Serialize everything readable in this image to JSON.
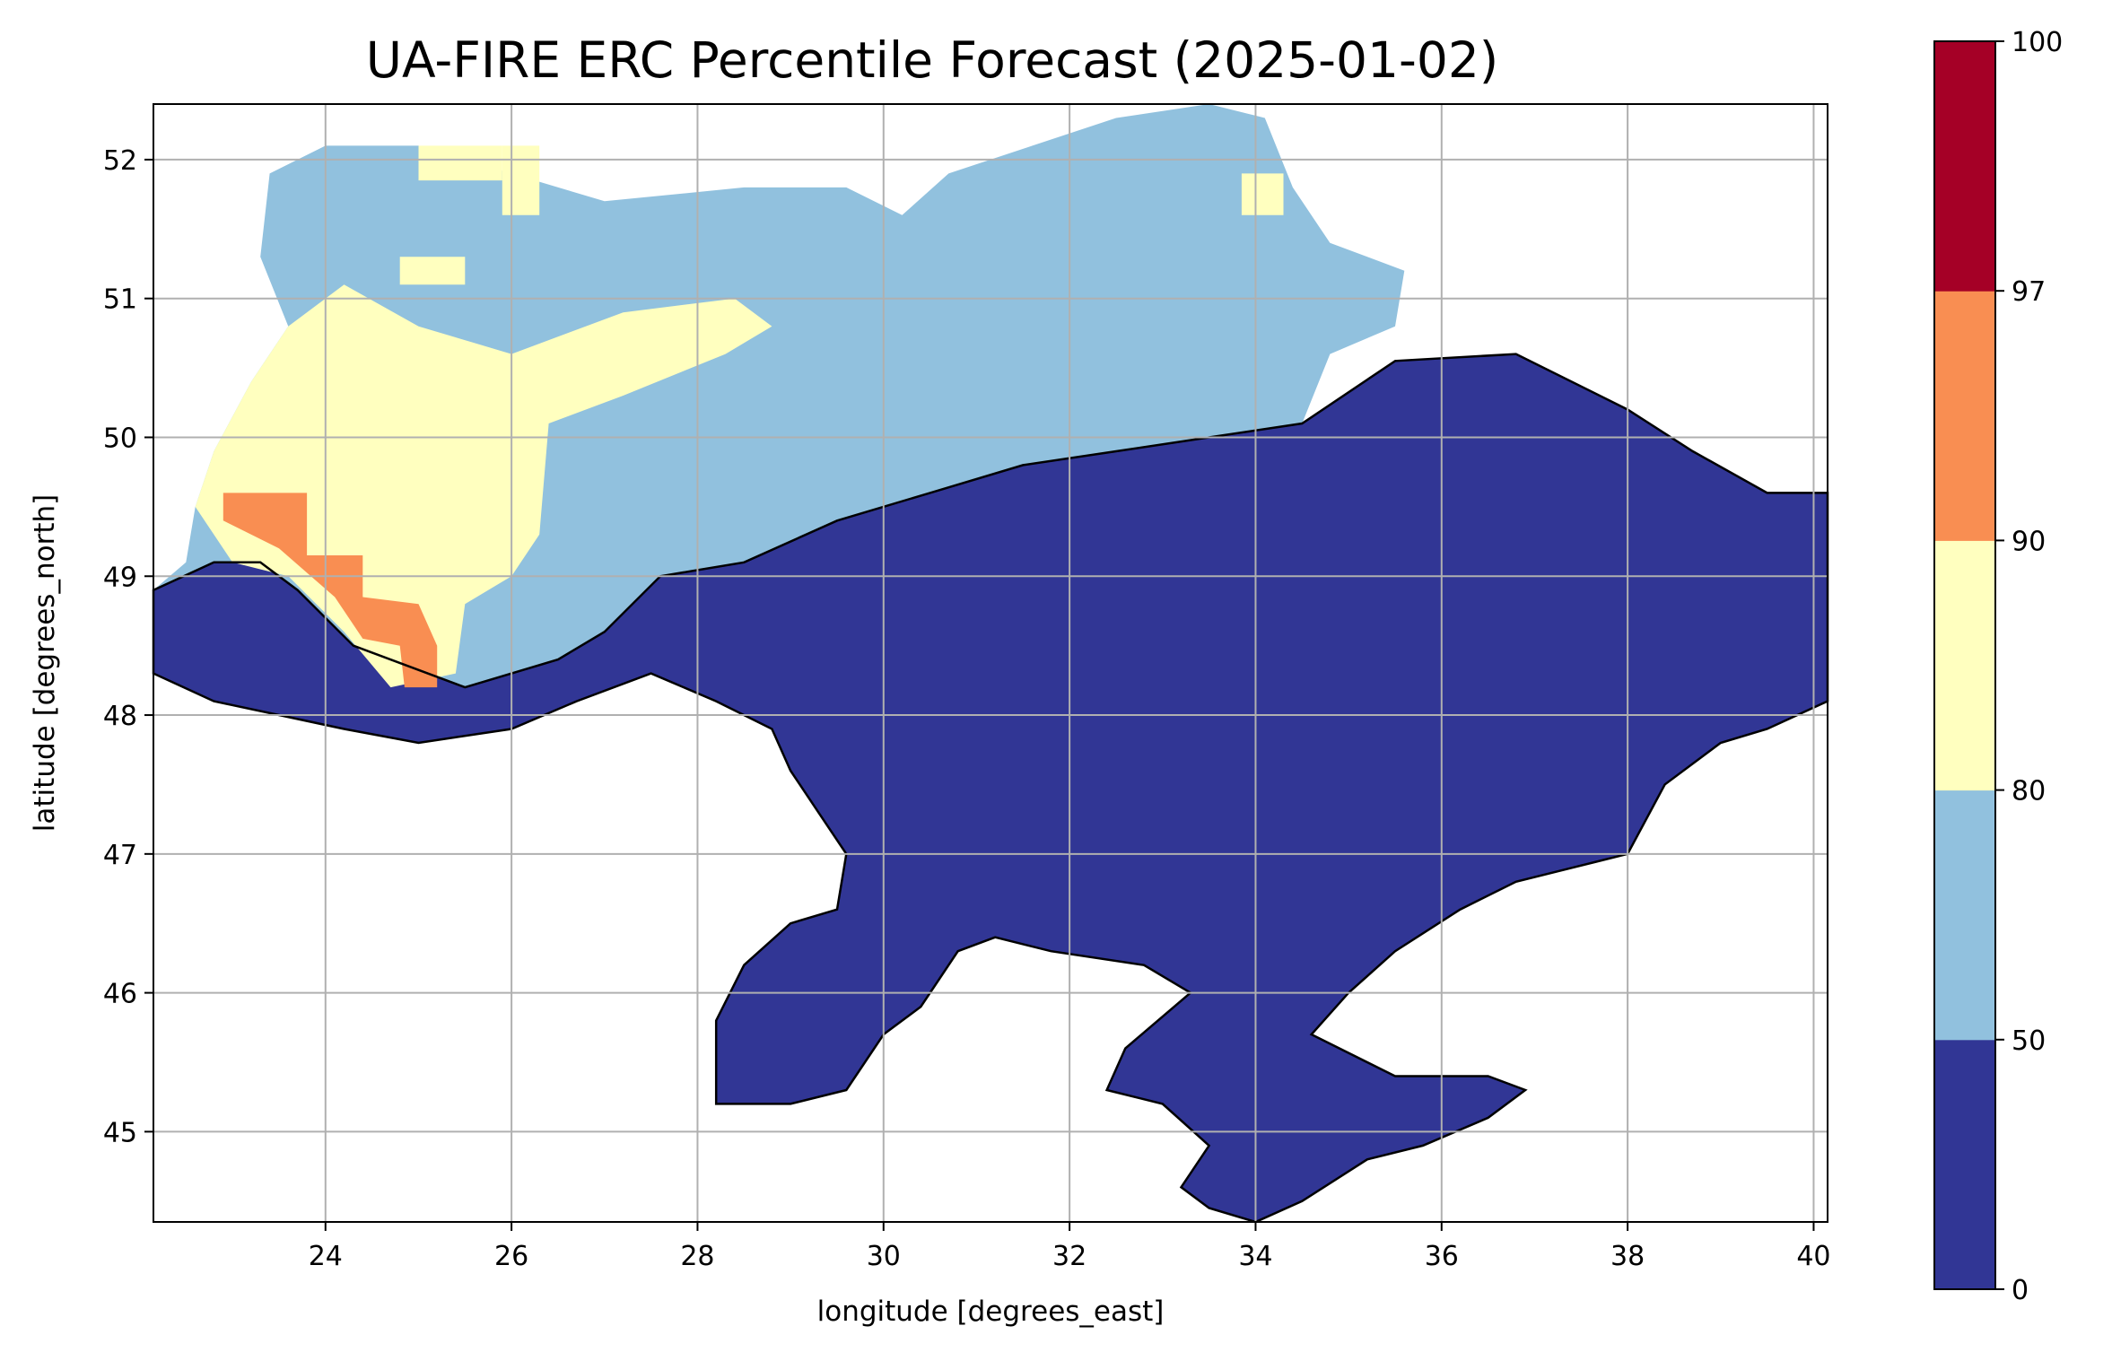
{
  "chart_data": {
    "type": "heatmap",
    "title": "UA-FIRE ERC Percentile Forecast (2025-01-02)",
    "xlabel": "longitude [degrees_east]",
    "ylabel": "latitude [degrees_north]",
    "xlim": [
      22.15,
      40.15
    ],
    "ylim": [
      44.35,
      52.4
    ],
    "xticks": [
      "24",
      "26",
      "28",
      "30",
      "32",
      "34",
      "36",
      "38",
      "40"
    ],
    "yticks": [
      "45",
      "46",
      "47",
      "48",
      "49",
      "50",
      "51",
      "52"
    ],
    "grid": true,
    "colorbar": {
      "ticks": [
        "0",
        "50",
        "80",
        "90",
        "97",
        "100"
      ],
      "bins": [
        {
          "range": [
            0,
            50
          ],
          "color": "#313695"
        },
        {
          "range": [
            50,
            80
          ],
          "color": "#91c1de"
        },
        {
          "range": [
            80,
            90
          ],
          "color": "#ffffbf"
        },
        {
          "range": [
            90,
            97
          ],
          "color": "#f98e52"
        },
        {
          "range": [
            97,
            100
          ],
          "color": "#a50026"
        }
      ]
    },
    "regions": [
      {
        "bin": 0,
        "points": [
          [
            22.15,
            48.9
          ],
          [
            22.8,
            49.1
          ],
          [
            23.3,
            49.1
          ],
          [
            23.7,
            48.9
          ],
          [
            24.3,
            48.5
          ],
          [
            25.5,
            48.2
          ],
          [
            26.5,
            48.4
          ],
          [
            27.0,
            48.6
          ],
          [
            27.6,
            49.0
          ],
          [
            28.5,
            49.1
          ],
          [
            29.5,
            49.4
          ],
          [
            30.5,
            49.6
          ],
          [
            31.5,
            49.8
          ],
          [
            32.5,
            49.9
          ],
          [
            33.5,
            50.0
          ],
          [
            34.5,
            50.1
          ],
          [
            35.5,
            50.55
          ],
          [
            36.8,
            50.6
          ],
          [
            38.0,
            50.2
          ],
          [
            38.7,
            49.9
          ],
          [
            39.5,
            49.6
          ],
          [
            40.15,
            49.6
          ],
          [
            40.15,
            48.1
          ],
          [
            39.5,
            47.9
          ],
          [
            39.0,
            47.8
          ],
          [
            38.4,
            47.5
          ],
          [
            38.0,
            47.0
          ],
          [
            37.4,
            46.9
          ],
          [
            36.8,
            46.8
          ],
          [
            36.2,
            46.6
          ],
          [
            35.5,
            46.3
          ],
          [
            35.0,
            46.0
          ],
          [
            34.6,
            45.7
          ],
          [
            35.5,
            45.4
          ],
          [
            36.5,
            45.4
          ],
          [
            36.9,
            45.3
          ],
          [
            36.5,
            45.1
          ],
          [
            35.8,
            44.9
          ],
          [
            35.2,
            44.8
          ],
          [
            34.5,
            44.5
          ],
          [
            34.0,
            44.35
          ],
          [
            33.5,
            44.45
          ],
          [
            33.2,
            44.6
          ],
          [
            33.5,
            44.9
          ],
          [
            33.0,
            45.2
          ],
          [
            32.4,
            45.3
          ],
          [
            32.6,
            45.6
          ],
          [
            33.3,
            46.0
          ],
          [
            32.8,
            46.2
          ],
          [
            31.8,
            46.3
          ],
          [
            31.2,
            46.4
          ],
          [
            30.8,
            46.3
          ],
          [
            30.4,
            45.9
          ],
          [
            30.0,
            45.7
          ],
          [
            29.6,
            45.3
          ],
          [
            29.0,
            45.2
          ],
          [
            28.2,
            45.2
          ],
          [
            28.2,
            45.8
          ],
          [
            28.5,
            46.2
          ],
          [
            29.0,
            46.5
          ],
          [
            29.5,
            46.6
          ],
          [
            29.6,
            47.0
          ],
          [
            29.3,
            47.3
          ],
          [
            29.0,
            47.6
          ],
          [
            28.8,
            47.9
          ],
          [
            28.2,
            48.1
          ],
          [
            27.5,
            48.3
          ],
          [
            26.7,
            48.1
          ],
          [
            26.0,
            47.9
          ],
          [
            25.0,
            47.8
          ],
          [
            24.2,
            47.9
          ],
          [
            23.5,
            48.0
          ],
          [
            22.8,
            48.1
          ],
          [
            22.15,
            48.3
          ]
        ]
      },
      {
        "bin": 1,
        "points": [
          [
            22.15,
            48.9
          ],
          [
            22.8,
            49.1
          ],
          [
            23.3,
            49.1
          ],
          [
            23.7,
            48.9
          ],
          [
            24.3,
            48.5
          ],
          [
            25.5,
            48.2
          ],
          [
            26.5,
            48.4
          ],
          [
            27.0,
            48.6
          ],
          [
            27.6,
            49.0
          ],
          [
            28.5,
            49.1
          ],
          [
            29.5,
            49.4
          ],
          [
            30.5,
            49.6
          ],
          [
            31.5,
            49.8
          ],
          [
            32.5,
            49.9
          ],
          [
            33.5,
            50.0
          ],
          [
            34.5,
            50.1
          ],
          [
            34.8,
            50.6
          ],
          [
            35.5,
            50.8
          ],
          [
            35.6,
            51.2
          ],
          [
            34.8,
            51.4
          ],
          [
            34.4,
            51.8
          ],
          [
            34.1,
            52.3
          ],
          [
            33.5,
            52.4
          ],
          [
            32.5,
            52.3
          ],
          [
            31.6,
            52.1
          ],
          [
            30.7,
            51.9
          ],
          [
            30.2,
            51.6
          ],
          [
            29.6,
            51.8
          ],
          [
            28.5,
            51.8
          ],
          [
            27.0,
            51.7
          ],
          [
            26.0,
            51.9
          ],
          [
            25.0,
            52.1
          ],
          [
            24.0,
            52.1
          ],
          [
            23.4,
            51.9
          ],
          [
            23.3,
            51.3
          ],
          [
            23.6,
            50.8
          ],
          [
            23.2,
            50.4
          ],
          [
            22.8,
            49.9
          ],
          [
            22.6,
            49.5
          ],
          [
            22.5,
            49.1
          ]
        ]
      },
      {
        "bin": 2,
        "points": [
          [
            22.8,
            49.9
          ],
          [
            23.2,
            50.4
          ],
          [
            23.6,
            50.8
          ],
          [
            24.2,
            51.1
          ],
          [
            25.0,
            50.8
          ],
          [
            26.0,
            50.6
          ],
          [
            27.2,
            50.9
          ],
          [
            28.4,
            51.0
          ],
          [
            28.8,
            50.8
          ],
          [
            28.3,
            50.6
          ],
          [
            27.2,
            50.3
          ],
          [
            26.4,
            50.1
          ],
          [
            26.3,
            49.3
          ],
          [
            26.0,
            49.0
          ],
          [
            25.5,
            48.8
          ],
          [
            25.4,
            48.3
          ],
          [
            24.7,
            48.2
          ],
          [
            24.2,
            48.6
          ],
          [
            23.6,
            49.0
          ],
          [
            23.0,
            49.1
          ],
          [
            22.6,
            49.5
          ]
        ]
      },
      {
        "bin": 2,
        "points": [
          [
            24.8,
            51.3
          ],
          [
            25.5,
            51.3
          ],
          [
            25.5,
            51.1
          ],
          [
            24.8,
            51.1
          ]
        ]
      },
      {
        "bin": 2,
        "points": [
          [
            25.9,
            52.1
          ],
          [
            26.3,
            52.1
          ],
          [
            26.3,
            51.6
          ],
          [
            25.9,
            51.6
          ]
        ]
      },
      {
        "bin": 2,
        "points": [
          [
            25.0,
            52.1
          ],
          [
            25.9,
            52.1
          ],
          [
            25.9,
            51.85
          ],
          [
            25.0,
            51.85
          ]
        ]
      },
      {
        "bin": 2,
        "points": [
          [
            33.85,
            51.9
          ],
          [
            34.3,
            51.9
          ],
          [
            34.3,
            51.6
          ],
          [
            33.85,
            51.6
          ]
        ]
      },
      {
        "bin": 3,
        "points": [
          [
            22.9,
            49.6
          ],
          [
            23.8,
            49.6
          ],
          [
            23.8,
            49.15
          ],
          [
            24.4,
            49.15
          ],
          [
            24.4,
            48.85
          ],
          [
            25.0,
            48.8
          ],
          [
            25.2,
            48.5
          ],
          [
            25.2,
            48.2
          ],
          [
            24.85,
            48.2
          ],
          [
            24.8,
            48.5
          ],
          [
            24.4,
            48.55
          ],
          [
            24.1,
            48.85
          ],
          [
            23.5,
            49.2
          ],
          [
            23.2,
            49.3
          ],
          [
            22.9,
            49.4
          ]
        ]
      }
    ]
  }
}
